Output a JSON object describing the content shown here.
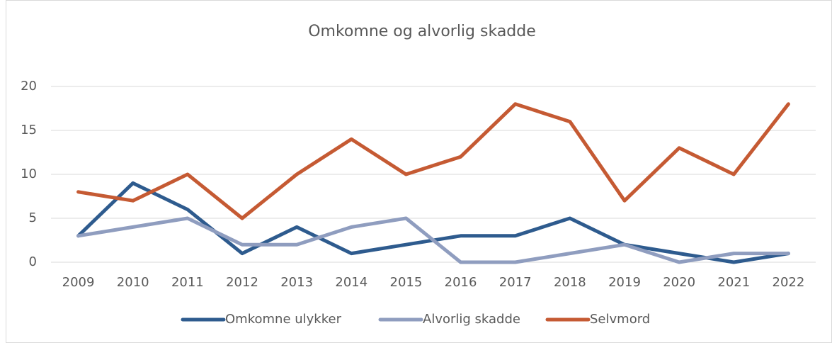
{
  "chart_data": {
    "type": "line",
    "title": "Omkomne og alvorlig skadde",
    "categories": [
      "2009",
      "2010",
      "2011",
      "2012",
      "2013",
      "2014",
      "2015",
      "2016",
      "2017",
      "2018",
      "2019",
      "2020",
      "2021",
      "2022"
    ],
    "series": [
      {
        "name": "Omkomne ulykker",
        "color": "#2e5b8e",
        "values": [
          3,
          9,
          6,
          1,
          4,
          1,
          2,
          3,
          3,
          5,
          2,
          1,
          0,
          1
        ]
      },
      {
        "name": "Alvorlig skadde",
        "color": "#8f9dbf",
        "values": [
          3,
          4,
          5,
          2,
          2,
          4,
          5,
          0,
          0,
          1,
          2,
          0,
          1,
          1
        ]
      },
      {
        "name": "Selvmord",
        "color": "#c55a33",
        "values": [
          8,
          7,
          10,
          5,
          10,
          14,
          10,
          12,
          18,
          16,
          7,
          13,
          10,
          18
        ]
      }
    ],
    "ylim": [
      0,
      20
    ],
    "yticks": [
      0,
      5,
      10,
      15,
      20
    ],
    "grid": true,
    "legend": "bottom"
  }
}
